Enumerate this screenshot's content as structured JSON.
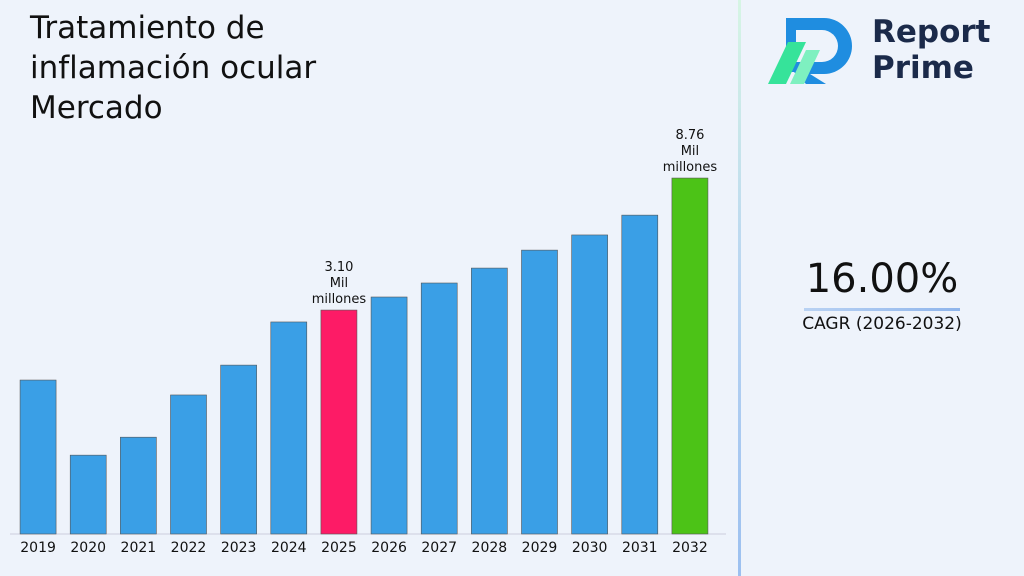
{
  "brand": {
    "line1": "Report",
    "line2": "Prime"
  },
  "cagr": {
    "value": "16.00%",
    "label": "CAGR (2026-2032)"
  },
  "chart_data": {
    "type": "bar",
    "title": "Tratamiento de inflamación ocular Mercado",
    "categories": [
      "2019",
      "2020",
      "2021",
      "2022",
      "2023",
      "2024",
      "2025",
      "2026",
      "2027",
      "2028",
      "2029",
      "2030",
      "2031",
      "2032"
    ],
    "values": [
      0.1,
      -3.12,
      -2.35,
      -0.54,
      0.74,
      2.59,
      3.1,
      3.66,
      4.26,
      4.9,
      5.67,
      6.32,
      7.17,
      8.76
    ],
    "value_labels": [
      null,
      null,
      null,
      null,
      null,
      null,
      "3.10\nMil\nmillones",
      null,
      null,
      null,
      null,
      null,
      null,
      "8.76\nMil\nmillones"
    ],
    "colors": [
      "#3a9fe6",
      "#3a9fe6",
      "#3a9fe6",
      "#3a9fe6",
      "#3a9fe6",
      "#3a9fe6",
      "#fd1b66",
      "#3a9fe6",
      "#3a9fe6",
      "#3a9fe6",
      "#3a9fe6",
      "#3a9fe6",
      "#3a9fe6",
      "#4cc317"
    ],
    "ylim": [
      -6.5,
      10.82
    ]
  }
}
